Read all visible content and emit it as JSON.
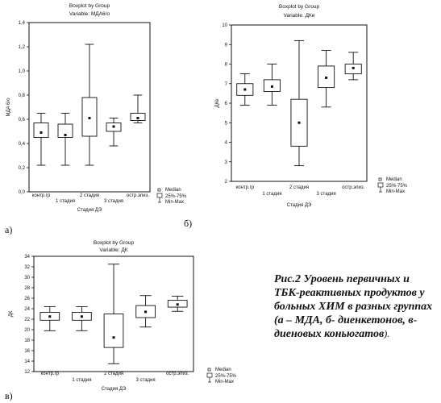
{
  "panel_letters": [
    "а)",
    "б)",
    "в)"
  ],
  "caption": {
    "title": "Рис.2 Уровень первичных и ТБК-реактивных продуктов у больных ХИМ в разных группах",
    "body": "(а – МДА, б- диенкетонов, в-диеновых коньюгатов",
    "end": ")."
  },
  "legend": {
    "median": "Median",
    "box": "25%-75%",
    "whisker": "Min-Max"
  },
  "chart_data": [
    {
      "type": "boxplot",
      "title": "Boxplot by Group",
      "subtitle": "Variable: МДА6/о",
      "ylabel": "МДА 6/о",
      "xlabel": "Стадия ДЭ",
      "ylim": [
        0,
        1.4
      ],
      "yticks": [
        0,
        0.2,
        0.4,
        0.6,
        0.8,
        1.0,
        1.2,
        1.4
      ],
      "ytick_labels": [
        "0,0",
        "0,2",
        "0,4",
        "0,6",
        "0,8",
        "1,0",
        "1,2",
        "1,4"
      ],
      "categories": [
        "контр.гр",
        "1 стадия",
        "2 стадия",
        "3 стадия",
        "остр.эпиз."
      ],
      "boxes": [
        {
          "min": 0.22,
          "q1": 0.45,
          "median": 0.49,
          "q3": 0.57,
          "max": 0.65
        },
        {
          "min": 0.22,
          "q1": 0.45,
          "median": 0.47,
          "q3": 0.56,
          "max": 0.65
        },
        {
          "min": 0.22,
          "q1": 0.46,
          "median": 0.61,
          "q3": 0.78,
          "max": 1.22
        },
        {
          "min": 0.38,
          "q1": 0.5,
          "median": 0.54,
          "q3": 0.57,
          "max": 0.61
        },
        {
          "min": 0.57,
          "q1": 0.59,
          "median": 0.61,
          "q3": 0.65,
          "max": 0.8
        }
      ]
    },
    {
      "type": "boxplot",
      "title": "Boxplot by Group",
      "subtitle": "Variable: ДКе",
      "ylabel": "ДКе",
      "xlabel": "Стадия ДЭ",
      "ylim": [
        2,
        10
      ],
      "yticks": [
        2,
        3,
        4,
        5,
        6,
        7,
        8,
        9,
        10
      ],
      "ytick_labels": [
        "2",
        "3",
        "4",
        "5",
        "6",
        "7",
        "8",
        "9",
        "10"
      ],
      "categories": [
        "контр.гр",
        "1 стадия",
        "2 стадия",
        "3 стадия",
        "остр.эпиз."
      ],
      "boxes": [
        {
          "min": 5.9,
          "q1": 6.4,
          "median": 6.7,
          "q3": 7.0,
          "max": 7.5
        },
        {
          "min": 5.9,
          "q1": 6.6,
          "median": 6.85,
          "q3": 7.2,
          "max": 8.0
        },
        {
          "min": 2.8,
          "q1": 3.8,
          "median": 5.0,
          "q3": 6.2,
          "max": 9.2
        },
        {
          "min": 5.8,
          "q1": 6.8,
          "median": 7.3,
          "q3": 7.9,
          "max": 8.7
        },
        {
          "min": 7.2,
          "q1": 7.5,
          "median": 7.8,
          "q3": 8.0,
          "max": 8.6
        }
      ]
    },
    {
      "type": "boxplot",
      "title": "Boxplot by Group",
      "subtitle": "Variable: ДК",
      "ylabel": "ДК",
      "xlabel": "Стадия ДЭ",
      "ylim": [
        12,
        34
      ],
      "yticks": [
        12,
        14,
        16,
        18,
        20,
        22,
        24,
        26,
        28,
        30,
        32,
        34
      ],
      "ytick_labels": [
        "12",
        "14",
        "16",
        "18",
        "20",
        "22",
        "24",
        "26",
        "28",
        "30",
        "32",
        "34"
      ],
      "categories": [
        "контр.гр",
        "1 стадия",
        "2 стадия",
        "3 стадия",
        "остр.эпиз."
      ],
      "boxes": [
        {
          "min": 19.8,
          "q1": 21.8,
          "median": 22.5,
          "q3": 23.3,
          "max": 24.4
        },
        {
          "min": 19.8,
          "q1": 21.8,
          "median": 22.5,
          "q3": 23.3,
          "max": 24.4
        },
        {
          "min": 13.5,
          "q1": 16.6,
          "median": 18.5,
          "q3": 23.0,
          "max": 32.5
        },
        {
          "min": 20.5,
          "q1": 22.3,
          "median": 23.4,
          "q3": 24.6,
          "max": 26.5
        },
        {
          "min": 23.5,
          "q1": 24.3,
          "median": 24.8,
          "q3": 25.6,
          "max": 26.4
        }
      ]
    }
  ]
}
